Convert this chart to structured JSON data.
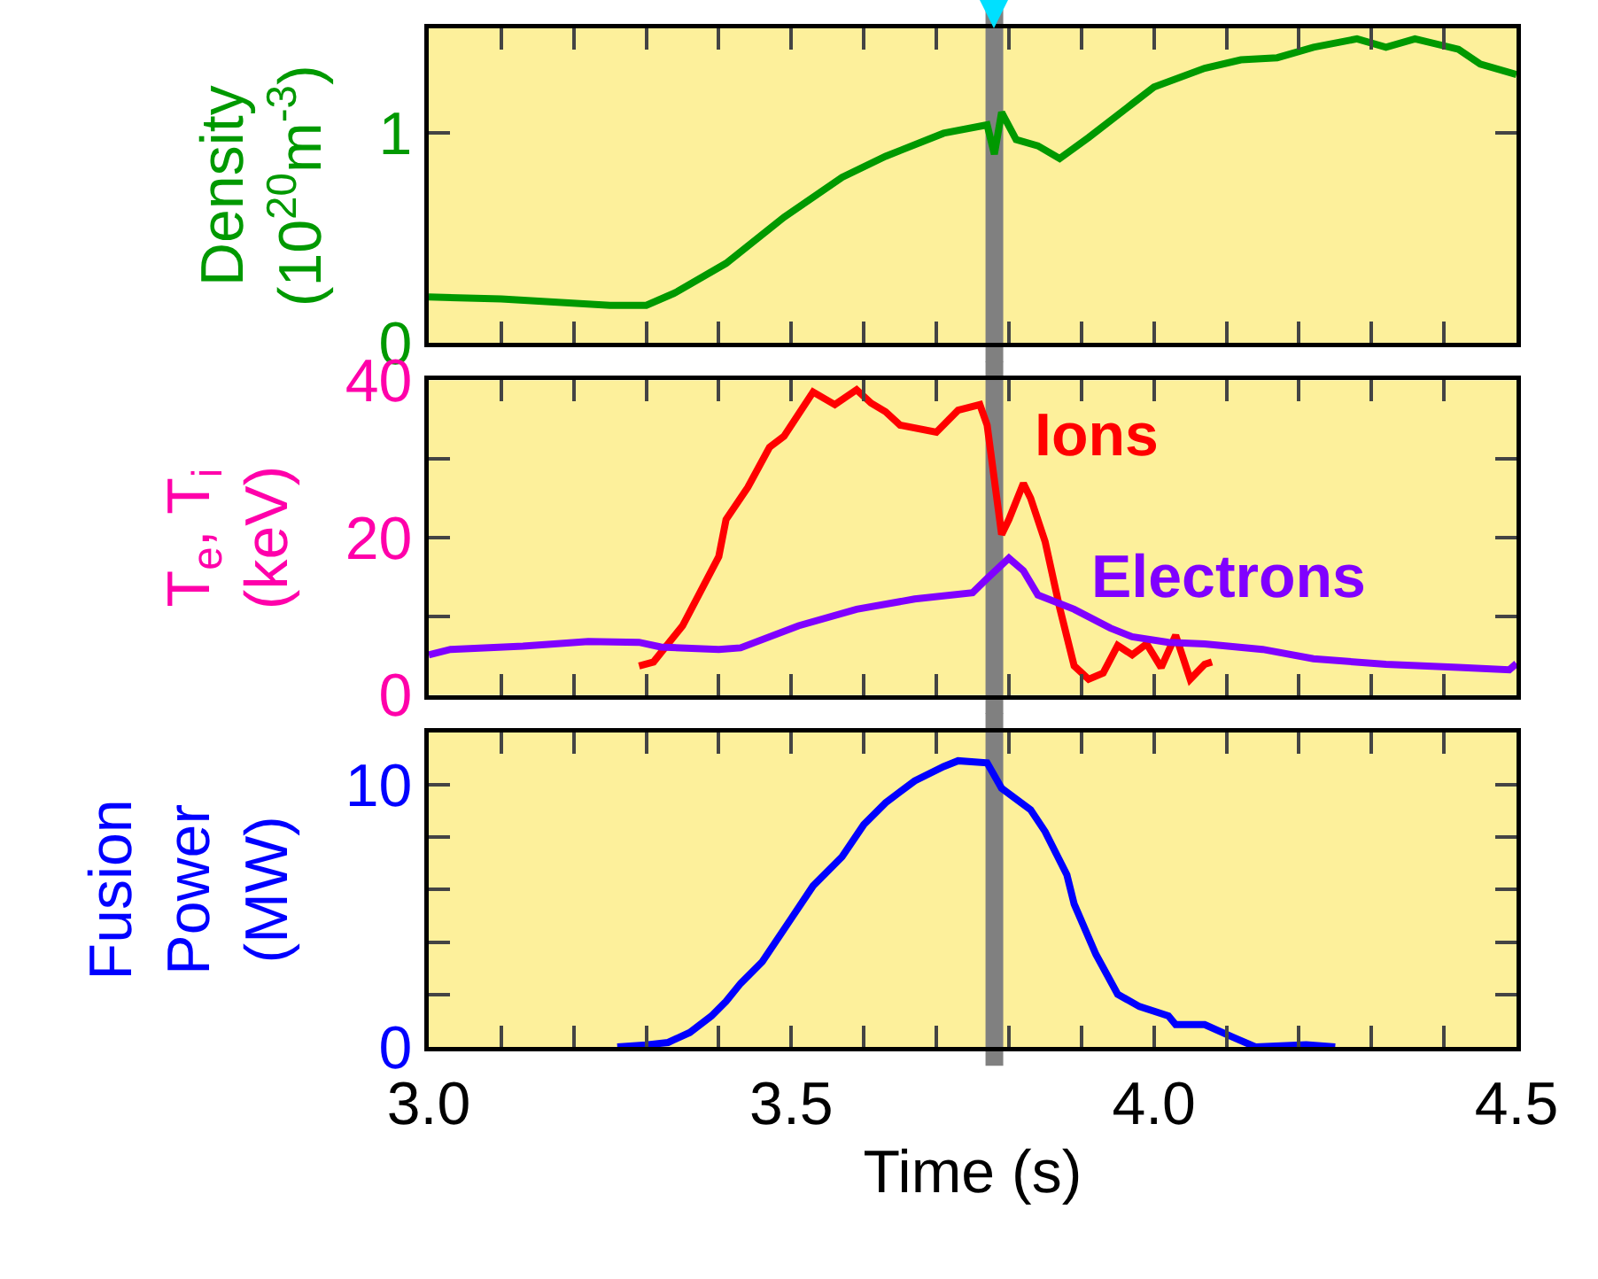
{
  "chart_data": [
    {
      "type": "line",
      "ylabel": "Density\n(10$^{20}$m$^{-3}$)",
      "xlim": [
        3,
        4.5
      ],
      "ylim": [
        0,
        1.5
      ],
      "yticks": [
        0,
        1
      ],
      "xticks": [
        {
          "value": 3.0,
          "label": null
        },
        {
          "value": 3.1,
          "label": null
        },
        {
          "value": 3.2,
          "label": null
        },
        {
          "value": 3.3,
          "label": null
        },
        {
          "value": 3.4,
          "label": null
        },
        {
          "value": 3.5,
          "label": null
        },
        {
          "value": 3.6,
          "label": null
        },
        {
          "value": 3.7,
          "label": null
        },
        {
          "value": 3.8,
          "label": null
        },
        {
          "value": 3.9,
          "label": null
        },
        {
          "value": 4.0,
          "label": null
        },
        {
          "value": 4.1,
          "label": null
        },
        {
          "value": 4.2,
          "label": null
        },
        {
          "value": 4.3,
          "label": null
        },
        {
          "value": 4.4,
          "label": null
        },
        {
          "value": 4.5,
          "label": null
        }
      ],
      "tick_labels": "y",
      "grid": false,
      "legend": false,
      "ref_lines": [
        {
          "axis": "x",
          "value": 3.78,
          "color": "#808080"
        }
      ],
      "series": [
        {
          "color": "#009900",
          "x": [
            3.0,
            3.1,
            3.25,
            3.3,
            3.34,
            3.41,
            3.49,
            3.57,
            3.63,
            3.71,
            3.77,
            3.78,
            3.79,
            3.81,
            3.84,
            3.87,
            3.91,
            3.97,
            4.0,
            4.07,
            4.12,
            4.17,
            4.22,
            4.28,
            4.32,
            4.36,
            4.42,
            4.45,
            4.5
          ],
          "values": [
            0.22,
            0.21,
            0.18,
            0.18,
            0.24,
            0.38,
            0.6,
            0.79,
            0.89,
            1.0,
            1.04,
            0.9,
            1.1,
            0.97,
            0.94,
            0.88,
            0.98,
            1.14,
            1.22,
            1.31,
            1.35,
            1.36,
            1.41,
            1.45,
            1.41,
            1.45,
            1.4,
            1.33,
            1.28
          ]
        }
      ]
    },
    {
      "type": "line",
      "ylabel": "T$_{e}$, T$_{i}$\n(keV)",
      "xlim": [
        3,
        4.5
      ],
      "ylim": [
        0,
        40
      ],
      "yticks": [
        0,
        {
          "value": 10,
          "label": null
        },
        20,
        {
          "value": 30,
          "label": null
        },
        40
      ],
      "xticks": [
        {
          "value": 3.0,
          "label": null
        },
        {
          "value": 3.1,
          "label": null
        },
        {
          "value": 3.2,
          "label": null
        },
        {
          "value": 3.3,
          "label": null
        },
        {
          "value": 3.4,
          "label": null
        },
        {
          "value": 3.5,
          "label": null
        },
        {
          "value": 3.6,
          "label": null
        },
        {
          "value": 3.7,
          "label": null
        },
        {
          "value": 3.8,
          "label": null
        },
        {
          "value": 3.9,
          "label": null
        },
        {
          "value": 4.0,
          "label": null
        },
        {
          "value": 4.1,
          "label": null
        },
        {
          "value": 4.2,
          "label": null
        },
        {
          "value": 4.3,
          "label": null
        },
        {
          "value": 4.4,
          "label": null
        },
        {
          "value": 4.5,
          "label": null
        }
      ],
      "tick_labels": "y",
      "grid": false,
      "legend": false,
      "ref_lines": [
        {
          "axis": "x",
          "value": 3.78,
          "color": "#808080"
        }
      ],
      "series": [
        {
          "name": "Ions",
          "color": "#ff0000",
          "x": [
            3.29,
            3.31,
            3.35,
            3.4,
            3.41,
            3.44,
            3.47,
            3.49,
            3.53,
            3.56,
            3.59,
            3.61,
            3.63,
            3.65,
            3.7,
            3.73,
            3.76,
            3.77,
            3.79,
            3.8,
            3.82,
            3.83,
            3.85,
            3.87,
            3.89,
            3.91,
            3.93,
            3.95,
            3.97,
            3.99,
            4.01,
            4.03,
            4.05,
            4.07,
            4.08
          ],
          "values": [
            3.7,
            4.2,
            8.8,
            17.6,
            22.3,
            26.4,
            31.5,
            32.9,
            38.5,
            36.9,
            38.8,
            37.1,
            36,
            34.3,
            33.4,
            36.2,
            36.9,
            34.3,
            20.4,
            22.3,
            26.9,
            25,
            19.5,
            11.1,
            3.7,
            2,
            2.8,
            6.3,
            5.1,
            6.5,
            3.5,
            7.6,
            2,
            3.9,
            4.2
          ]
        },
        {
          "name": "Electrons",
          "color": "#8000ff",
          "x": [
            3.0,
            3.03,
            3.13,
            3.22,
            3.29,
            3.32,
            3.4,
            3.43,
            3.51,
            3.59,
            3.67,
            3.75,
            3.77,
            3.8,
            3.82,
            3.84,
            3.89,
            3.94,
            3.97,
            4.02,
            4.07,
            4.15,
            4.22,
            4.32,
            4.42,
            4.49,
            4.5
          ],
          "values": [
            5.1,
            5.8,
            6.2,
            6.8,
            6.7,
            6.1,
            5.8,
            6,
            8.8,
            10.9,
            12.2,
            13,
            14.8,
            17.4,
            15.8,
            12.7,
            10.9,
            8.5,
            7.4,
            6.7,
            6.5,
            5.8,
            4.6,
            3.9,
            3.5,
            3.2,
            4
          ]
        }
      ]
    },
    {
      "type": "line",
      "ylabel": "Fusion\nPower\n(MW)",
      "xlabel": "Time (s)",
      "xlim": [
        3,
        4.5
      ],
      "ylim": [
        0,
        12
      ],
      "yticks": [
        0,
        {
          "value": 2,
          "label": null
        },
        {
          "value": 4,
          "label": null
        },
        {
          "value": 6,
          "label": null
        },
        {
          "value": 8,
          "label": null
        },
        10
      ],
      "xticks": [
        {
          "value": 3.0,
          "label": "3.0"
        },
        {
          "value": 3.1,
          "label": null
        },
        {
          "value": 3.2,
          "label": null
        },
        {
          "value": 3.3,
          "label": null
        },
        {
          "value": 3.4,
          "label": null
        },
        {
          "value": 3.5,
          "label": "3.5"
        },
        {
          "value": 3.6,
          "label": null
        },
        {
          "value": 3.7,
          "label": null
        },
        {
          "value": 3.8,
          "label": null
        },
        {
          "value": 3.9,
          "label": null
        },
        {
          "value": 4.0,
          "label": "4.0"
        },
        {
          "value": 4.1,
          "label": null
        },
        {
          "value": 4.2,
          "label": null
        },
        {
          "value": 4.3,
          "label": null
        },
        {
          "value": 4.4,
          "label": null
        },
        {
          "value": 4.5,
          "label": "4.5"
        }
      ],
      "grid": false,
      "legend": false,
      "ref_lines": [
        {
          "axis": "x",
          "value": 3.78,
          "color": "#808080"
        }
      ],
      "series": [
        {
          "color": "#0000ff",
          "x": [
            3.26,
            3.3,
            3.33,
            3.36,
            3.39,
            3.41,
            3.43,
            3.46,
            3.5,
            3.53,
            3.57,
            3.6,
            3.63,
            3.67,
            3.71,
            3.73,
            3.77,
            3.79,
            3.83,
            3.85,
            3.88,
            3.89,
            3.92,
            3.95,
            3.98,
            4.02,
            4.03,
            4.07,
            4.11,
            4.14,
            4.21,
            4.25
          ],
          "values": [
            0,
            0.08,
            0.17,
            0.55,
            1.18,
            1.74,
            2.42,
            3.25,
            4.9,
            6.14,
            7.25,
            8.48,
            9.31,
            10.14,
            10.69,
            10.91,
            10.83,
            9.86,
            9.04,
            8.21,
            6.56,
            5.45,
            3.53,
            2.01,
            1.54,
            1.18,
            0.85,
            0.85,
            0.36,
            0,
            0.08,
            0
          ]
        }
      ]
    }
  ]
}
